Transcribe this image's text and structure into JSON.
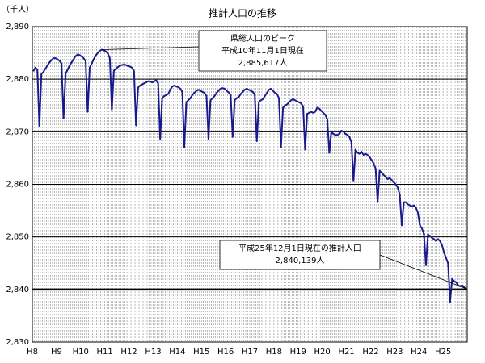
{
  "chart_data": {
    "type": "line",
    "title": "推計人口の推移",
    "y_unit_label": "（千人）",
    "categories": [
      "H8",
      null,
      null,
      null,
      null,
      null,
      null,
      null,
      null,
      null,
      null,
      null,
      "H9",
      null,
      null,
      null,
      null,
      null,
      null,
      null,
      null,
      null,
      null,
      null,
      "H10",
      null,
      null,
      null,
      null,
      null,
      null,
      null,
      null,
      null,
      null,
      null,
      "H11",
      null,
      null,
      null,
      null,
      null,
      null,
      null,
      null,
      null,
      null,
      null,
      "H12",
      null,
      null,
      null,
      null,
      null,
      null,
      null,
      null,
      null,
      null,
      null,
      "H13",
      null,
      null,
      null,
      null,
      null,
      null,
      null,
      null,
      null,
      null,
      null,
      "H14",
      null,
      null,
      null,
      null,
      null,
      null,
      null,
      null,
      null,
      null,
      null,
      "H15",
      null,
      null,
      null,
      null,
      null,
      null,
      null,
      null,
      null,
      null,
      null,
      "H16",
      null,
      null,
      null,
      null,
      null,
      null,
      null,
      null,
      null,
      null,
      null,
      "H17",
      null,
      null,
      null,
      null,
      null,
      null,
      null,
      null,
      null,
      null,
      null,
      "H18",
      null,
      null,
      null,
      null,
      null,
      null,
      null,
      null,
      null,
      null,
      null,
      "H19",
      null,
      null,
      null,
      null,
      null,
      null,
      null,
      null,
      null,
      null,
      null,
      "H20",
      null,
      null,
      null,
      null,
      null,
      null,
      null,
      null,
      null,
      null,
      null,
      "H21",
      null,
      null,
      null,
      null,
      null,
      null,
      null,
      null,
      null,
      null,
      null,
      "H22",
      null,
      null,
      null,
      null,
      null,
      null,
      null,
      null,
      null,
      null,
      null,
      "H23",
      null,
      null,
      null,
      null,
      null,
      null,
      null,
      null,
      null,
      null,
      null,
      "H24",
      null,
      null,
      null,
      null,
      null,
      null,
      null,
      null,
      null,
      null,
      null,
      "H25",
      null,
      null,
      null,
      null,
      null,
      null,
      null,
      null,
      null,
      null,
      null
    ],
    "series": [
      {
        "name": "推計人口",
        "color": "#1a1a8c",
        "values": [
          2881.5,
          2882.2,
          2881.8,
          2871.0,
          2881.0,
          2881.4,
          2882.0,
          2882.6,
          2883.2,
          2883.6,
          2884.0,
          2884.0,
          2883.8,
          2883.5,
          2883.0,
          2872.5,
          2881.0,
          2881.8,
          2882.6,
          2883.2,
          2883.8,
          2884.4,
          2884.7,
          2884.6,
          2884.3,
          2884.0,
          2883.4,
          2873.8,
          2882.2,
          2883.0,
          2883.8,
          2884.5,
          2885.0,
          2885.4,
          2885.617,
          2885.5,
          2885.3,
          2884.9,
          2884.0,
          2874.2,
          2881.6,
          2882.0,
          2882.3,
          2882.6,
          2882.7,
          2882.8,
          2882.7,
          2882.5,
          2882.4,
          2882.2,
          2881.6,
          2871.2,
          2878.4,
          2878.8,
          2879.0,
          2879.2,
          2879.4,
          2879.6,
          2879.6,
          2879.4,
          2879.6,
          2879.8,
          2879.2,
          2868.6,
          2876.4,
          2876.8,
          2877.0,
          2877.2,
          2878.0,
          2878.6,
          2878.8,
          2878.6,
          2878.5,
          2878.2,
          2877.6,
          2867.0,
          2875.6,
          2876.0,
          2876.4,
          2877.0,
          2877.4,
          2877.8,
          2878.0,
          2877.8,
          2877.6,
          2877.4,
          2876.8,
          2868.6,
          2876.0,
          2876.4,
          2876.8,
          2877.4,
          2877.8,
          2878.2,
          2878.3,
          2878.2,
          2877.8,
          2877.5,
          2877.0,
          2869.0,
          2876.0,
          2876.4,
          2876.6,
          2877.2,
          2877.6,
          2878.0,
          2878.2,
          2878.0,
          2877.8,
          2877.6,
          2877.0,
          2868.2,
          2875.6,
          2876.0,
          2876.2,
          2876.8,
          2877.4,
          2878.0,
          2878.2,
          2877.8,
          2877.4,
          2877.2,
          2876.4,
          2867.0,
          2874.6,
          2875.0,
          2875.2,
          2875.6,
          2876.0,
          2876.2,
          2876.0,
          2875.8,
          2875.6,
          2875.4,
          2874.8,
          2866.6,
          2873.4,
          2873.6,
          2873.8,
          2873.6,
          2873.8,
          2874.6,
          2874.4,
          2874.0,
          2873.6,
          2873.2,
          2872.4,
          2866.0,
          2870.0,
          2869.6,
          2869.4,
          2869.4,
          2869.6,
          2870.2,
          2870.0,
          2869.6,
          2869.4,
          2869.0,
          2868.0,
          2860.6,
          2866.6,
          2866.0,
          2865.8,
          2866.2,
          2865.6,
          2865.8,
          2865.6,
          2865.2,
          2864.6,
          2864.0,
          2863.0,
          2856.6,
          2862.6,
          2862.2,
          2861.8,
          2861.4,
          2861.0,
          2861.2,
          2860.8,
          2860.4,
          2860.0,
          2859.4,
          2858.0,
          2852.2,
          2856.6,
          2856.6,
          2856.2,
          2856.0,
          2855.8,
          2856.0,
          2855.6,
          2854.6,
          2852.2,
          2851.6,
          2850.6,
          2844.6,
          2850.4,
          2850.2,
          2849.8,
          2849.6,
          2849.2,
          2849.6,
          2849.2,
          2848.4,
          2847.0,
          2846.0,
          2845.0,
          2837.6,
          2842.0,
          2841.6,
          2841.4,
          2840.8,
          2840.6,
          2840.8,
          2840.4,
          2840.139
        ]
      }
    ],
    "ylim": [
      2830,
      2890
    ],
    "yticks": [
      {
        "value": 2830,
        "label": "2,830"
      },
      {
        "value": 2840,
        "label": "2,840"
      },
      {
        "value": 2850,
        "label": "2,850"
      },
      {
        "value": 2860,
        "label": "2,860"
      },
      {
        "value": 2870,
        "label": "2,870"
      },
      {
        "value": 2880,
        "label": "2,880"
      },
      {
        "value": 2890,
        "label": "2,890"
      }
    ],
    "grid": true,
    "reference_line": 2840,
    "annotations": [
      {
        "lines": [
          "県総人口のピーク",
          "平成10年11月1日現在",
          "2,885,617人"
        ]
      },
      {
        "lines": [
          "平成25年12月1日現在の推計人口",
          "2,840,139人"
        ]
      }
    ]
  }
}
